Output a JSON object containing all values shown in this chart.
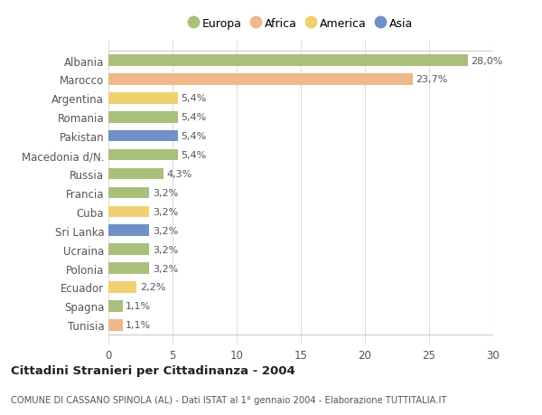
{
  "categories": [
    "Albania",
    "Marocco",
    "Argentina",
    "Romania",
    "Pakistan",
    "Macedonia d/N.",
    "Russia",
    "Francia",
    "Cuba",
    "Sri Lanka",
    "Ucraina",
    "Polonia",
    "Ecuador",
    "Spagna",
    "Tunisia"
  ],
  "values": [
    28.0,
    23.7,
    5.4,
    5.4,
    5.4,
    5.4,
    4.3,
    3.2,
    3.2,
    3.2,
    3.2,
    3.2,
    2.2,
    1.1,
    1.1
  ],
  "labels": [
    "28,0%",
    "23,7%",
    "5,4%",
    "5,4%",
    "5,4%",
    "5,4%",
    "4,3%",
    "3,2%",
    "3,2%",
    "3,2%",
    "3,2%",
    "3,2%",
    "2,2%",
    "1,1%",
    "1,1%"
  ],
  "colors": [
    "#a8c07a",
    "#f0b888",
    "#f0d070",
    "#a8c07a",
    "#7090c8",
    "#a8c07a",
    "#a8c07a",
    "#a8c07a",
    "#f0d070",
    "#7090c8",
    "#a8c07a",
    "#a8c07a",
    "#f0d070",
    "#a8c07a",
    "#f0b888"
  ],
  "legend_labels": [
    "Europa",
    "Africa",
    "America",
    "Asia"
  ],
  "legend_colors": [
    "#a8c07a",
    "#f0b888",
    "#f0d070",
    "#7090c8"
  ],
  "title": "Cittadini Stranieri per Cittadinanza - 2004",
  "subtitle": "COMUNE DI CASSANO SPINOLA (AL) - Dati ISTAT al 1° gennaio 2004 - Elaborazione TUTTITALIA.IT",
  "xlim": [
    0,
    30
  ],
  "xticks": [
    0,
    5,
    10,
    15,
    20,
    25,
    30
  ],
  "background_color": "#ffffff",
  "grid_color": "#dddddd"
}
